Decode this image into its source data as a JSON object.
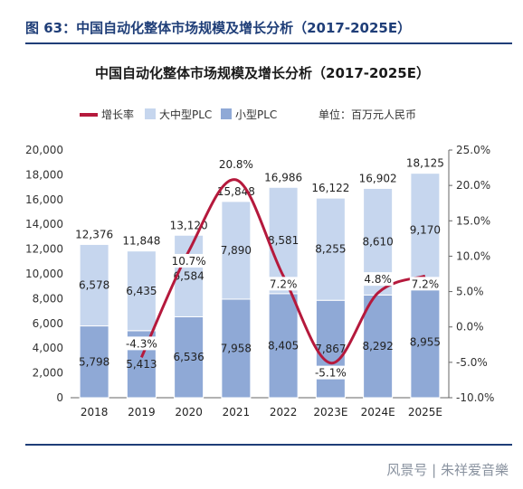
{
  "figure_caption": "图 63：中国自动化整体市场规模及增长分析（2017-2025E）",
  "watermark": "风景号 | 朱祥爱音樂",
  "chart_data": {
    "type": "bar",
    "stacked": true,
    "title": "中国自动化整体市场规模及增长分析（2017-2025E）",
    "unit_label": "单位：百万元人民币",
    "categories": [
      "2018",
      "2019",
      "2020",
      "2021",
      "2022",
      "2023E",
      "2024E",
      "2025E"
    ],
    "series": [
      {
        "name": "小型PLC",
        "type": "bar",
        "axis": "left",
        "color": "#8fa9d6",
        "values": [
          5798,
          5413,
          6536,
          7958,
          8405,
          7867,
          8292,
          8955
        ],
        "labels": [
          "5,798",
          "5,413",
          "6,536",
          "7,958",
          "8,405",
          "7,867",
          "8,292",
          "8,955"
        ]
      },
      {
        "name": "大中型PLC",
        "type": "bar",
        "axis": "left",
        "color": "#c6d6ee",
        "values": [
          6578,
          6435,
          6584,
          7890,
          8581,
          8255,
          8610,
          9170
        ],
        "labels": [
          "6,578",
          "6,435",
          "6,584",
          "7,890",
          "8,581",
          "8,255",
          "8,610",
          "9,170"
        ]
      },
      {
        "name": "增长率",
        "type": "line",
        "axis": "right",
        "color": "#b5193c",
        "values": [
          null,
          -4.3,
          10.7,
          20.8,
          7.2,
          -5.1,
          4.8,
          7.2
        ],
        "labels": [
          "",
          "-4.3%",
          "10.7%",
          "20.8%",
          "7.2%",
          "-5.1%",
          "4.8%",
          "7.2%"
        ]
      }
    ],
    "totals": [
      "12,376",
      "11,848",
      "13,120",
      "15,848",
      "16,986",
      "16,122",
      "16,902",
      "18,125"
    ],
    "total_values": [
      12376,
      11848,
      13120,
      15848,
      16986,
      16122,
      16902,
      18125
    ],
    "y_left": {
      "min": 0,
      "max": 20000,
      "ticks": [
        "0",
        "2,000",
        "4,000",
        "6,000",
        "8,000",
        "10,000",
        "12,000",
        "14,000",
        "16,000",
        "18,000",
        "20,000"
      ]
    },
    "y_right": {
      "min": -10,
      "max": 25,
      "ticks": [
        "-10.0%",
        "-5.0%",
        "0.0%",
        "5.0%",
        "10.0%",
        "15.0%",
        "20.0%",
        "25.0%"
      ]
    },
    "legend": [
      "增长率",
      "大中型PLC",
      "小型PLC"
    ],
    "legend_position": "top-left",
    "grid": false
  }
}
